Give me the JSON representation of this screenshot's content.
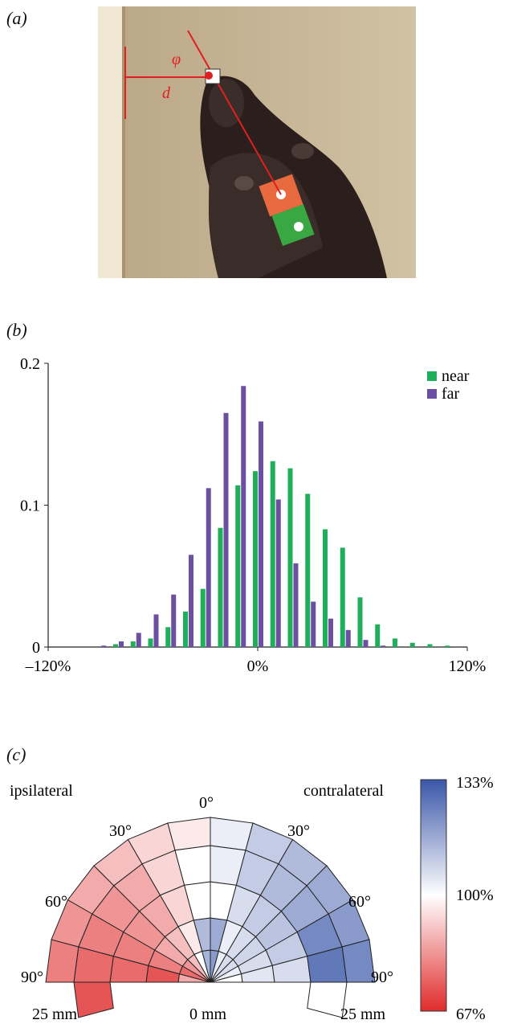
{
  "panels": {
    "a": {
      "label": "(a)",
      "annotations": {
        "angle": "φ",
        "distance": "d"
      }
    },
    "b": {
      "label": "(b)"
    },
    "c": {
      "label": "(c)",
      "side_left": "ipsilateral",
      "side_right": "contralateral",
      "angle_labels": [
        "0°",
        "30°",
        "30°",
        "60°",
        "60°",
        "90°",
        "90°"
      ],
      "distance_labels": [
        "25 mm",
        "0 mm",
        "25 mm"
      ],
      "colorbar": {
        "max": "133%",
        "mid": "100%",
        "min": "67%",
        "colors": {
          "high": "#3a56a8",
          "mid": "#ffffff",
          "low": "#e02b2b"
        }
      }
    }
  },
  "chart_data": {
    "type": "bar",
    "x": [
      -100,
      -90,
      -80,
      -70,
      -60,
      -50,
      -40,
      -30,
      -20,
      -10,
      0,
      10,
      20,
      30,
      40,
      50,
      60,
      70,
      80,
      90,
      100,
      110,
      120
    ],
    "x_tick_labels": [
      "–120%",
      "0%",
      "120%"
    ],
    "y_tick_labels": [
      "0",
      "0.1",
      "0.2"
    ],
    "xlim": [
      -120,
      120
    ],
    "ylim": [
      0,
      0.2
    ],
    "series": [
      {
        "name": "near",
        "color": "#1fae5a",
        "values": [
          0.0,
          0.0,
          0.002,
          0.004,
          0.006,
          0.014,
          0.025,
          0.041,
          0.084,
          0.114,
          0.124,
          0.131,
          0.126,
          0.108,
          0.083,
          0.07,
          0.035,
          0.016,
          0.006,
          0.003,
          0.002,
          0.001,
          0.0
        ]
      },
      {
        "name": "far",
        "color": "#6b4fa0",
        "values": [
          0.0,
          0.001,
          0.004,
          0.01,
          0.023,
          0.037,
          0.065,
          0.112,
          0.165,
          0.184,
          0.159,
          0.104,
          0.059,
          0.032,
          0.02,
          0.012,
          0.005,
          0.001,
          0.0,
          0.0,
          0.0,
          0.0,
          0.0
        ]
      }
    ],
    "legend": "top-right"
  }
}
